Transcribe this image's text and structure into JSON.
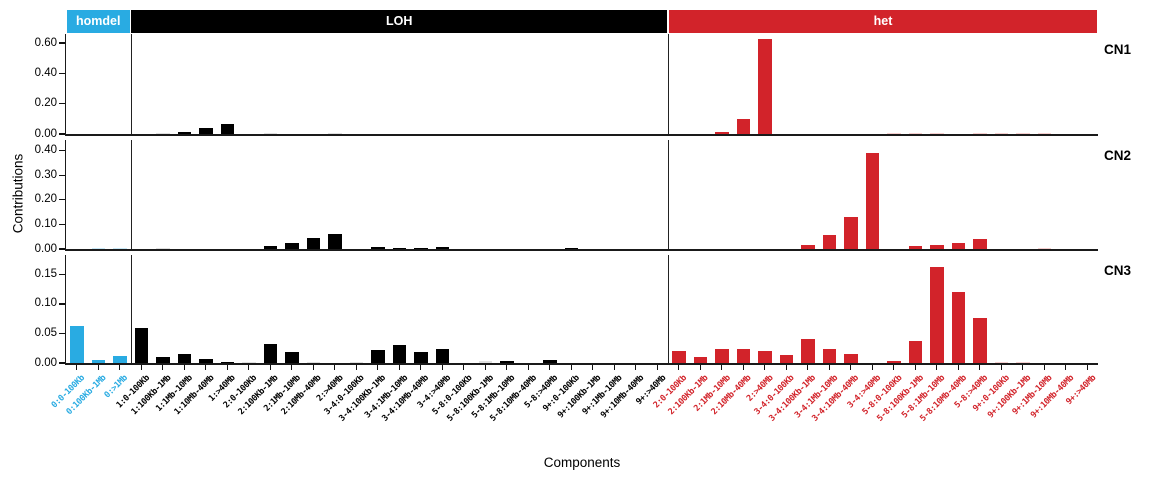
{
  "chart_data": {
    "type": "bar",
    "title": "",
    "xlabel": "Components",
    "ylabel": "Contributions",
    "legend_position": "none",
    "grid": false,
    "facet_labels": [
      "CN1",
      "CN2",
      "CN3"
    ],
    "group_spans": [
      {
        "label": "homdel",
        "count": 3,
        "color": "#29ABE2",
        "faint_color": "#C8E9F8",
        "text_color": "#FFFFFF"
      },
      {
        "label": "LOH",
        "count": 25,
        "color": "#000000",
        "faint_color": "#E0E0E0",
        "text_color": "#FFFFFF"
      },
      {
        "label": "het",
        "count": 20,
        "color": "#D2232A",
        "faint_color": "#F6CFCF",
        "text_color": "#FFFFFF"
      }
    ],
    "categories": [
      "0:0-100Kb",
      "0:100Kb-1Mb",
      "0:>1Mb",
      "1:0-100Kb",
      "1:100Kb-1Mb",
      "1:1Mb-10Mb",
      "1:10Mb-40Mb",
      "1:>40Mb",
      "2:0-100Kb",
      "2:100Kb-1Mb",
      "2:1Mb-10Mb",
      "2:10Mb-40Mb",
      "2:>40Mb",
      "3-4:0-100Kb",
      "3-4:100Kb-1Mb",
      "3-4:1Mb-10Mb",
      "3-4:10Mb-40Mb",
      "3-4:>40Mb",
      "5-8:0-100Kb",
      "5-8:100Kb-1Mb",
      "5-8:1Mb-10Mb",
      "5-8:10Mb-40Mb",
      "5-8:>40Mb",
      "9+:0-100Kb",
      "9+:100Kb-1Mb",
      "9+:1Mb-10Mb",
      "9+:10Mb-40Mb",
      "9+:>40Mb",
      "2:0-100Kb",
      "2:100Kb-1Mb",
      "2:1Mb-10Mb",
      "2:10Mb-40Mb",
      "2:>40Mb",
      "3-4:0-100Kb",
      "3-4:100Kb-1Mb",
      "3-4:1Mb-10Mb",
      "3-4:10Mb-40Mb",
      "3-4:>40Mb",
      "5-8:0-100Kb",
      "5-8:100Kb-1Mb",
      "5-8:1Mb-10Mb",
      "5-8:10Mb-40Mb",
      "5-8:>40Mb",
      "9+:0-100Kb",
      "9+:100Kb-1Mb",
      "9+:1Mb-10Mb",
      "9+:10Mb-40Mb",
      "9+:>40Mb"
    ],
    "series": [
      {
        "name": "CN1",
        "ymax": 0.66,
        "yticks": [
          "0.00",
          "0.20",
          "0.40",
          "0.60"
        ],
        "values": [
          0,
          0,
          0,
          0,
          0.005,
          0.01,
          0.04,
          0.068,
          0,
          0.004,
          0,
          0,
          0.004,
          0,
          0,
          0,
          0,
          0,
          0,
          0,
          0,
          0,
          0,
          0,
          0,
          0,
          0,
          0,
          0,
          0,
          0.01,
          0.1,
          0.63,
          0,
          0,
          0,
          0,
          0,
          0.003,
          0.003,
          0.003,
          0,
          0.003,
          0.003,
          0.002,
          0.002,
          0,
          0
        ],
        "faint_indices": [
          4,
          9,
          12,
          38,
          39,
          40,
          42,
          43,
          44,
          45
        ]
      },
      {
        "name": "CN2",
        "ymax": 0.443,
        "yticks": [
          "0.00",
          "0.10",
          "0.20",
          "0.30",
          "0.40"
        ],
        "values": [
          0,
          0.004,
          0.002,
          0,
          0.003,
          0,
          0,
          0,
          0,
          0.013,
          0.023,
          0.044,
          0.061,
          0,
          0.007,
          0.006,
          0.004,
          0.009,
          0,
          0,
          0,
          0,
          0,
          0.005,
          0,
          0,
          0,
          0,
          0,
          0,
          0,
          0,
          0,
          0,
          0.016,
          0.057,
          0.13,
          0.39,
          0,
          0.012,
          0.016,
          0.024,
          0.04,
          0,
          0,
          0.003,
          0,
          0
        ],
        "faint_indices": [
          1,
          2,
          4,
          45
        ]
      },
      {
        "name": "CN3",
        "ymax": 0.183,
        "yticks": [
          "0.00",
          "0.05",
          "0.10",
          "0.15"
        ],
        "values": [
          0.062,
          0.005,
          0.012,
          0.06,
          0.011,
          0.016,
          0.007,
          0.002,
          0.002,
          0.032,
          0.018,
          0.002,
          0,
          0.002,
          0.022,
          0.031,
          0.019,
          0.023,
          0,
          0.003,
          0.004,
          0,
          0.005,
          0,
          0,
          0,
          0,
          0,
          0.02,
          0.01,
          0.023,
          0.023,
          0.02,
          0.014,
          0.04,
          0.024,
          0.016,
          0,
          0.003,
          0.038,
          0.162,
          0.121,
          0.077,
          0.002,
          0.002,
          0,
          0,
          0
        ],
        "faint_indices": [
          8,
          11,
          13,
          19,
          43,
          44
        ]
      }
    ]
  }
}
